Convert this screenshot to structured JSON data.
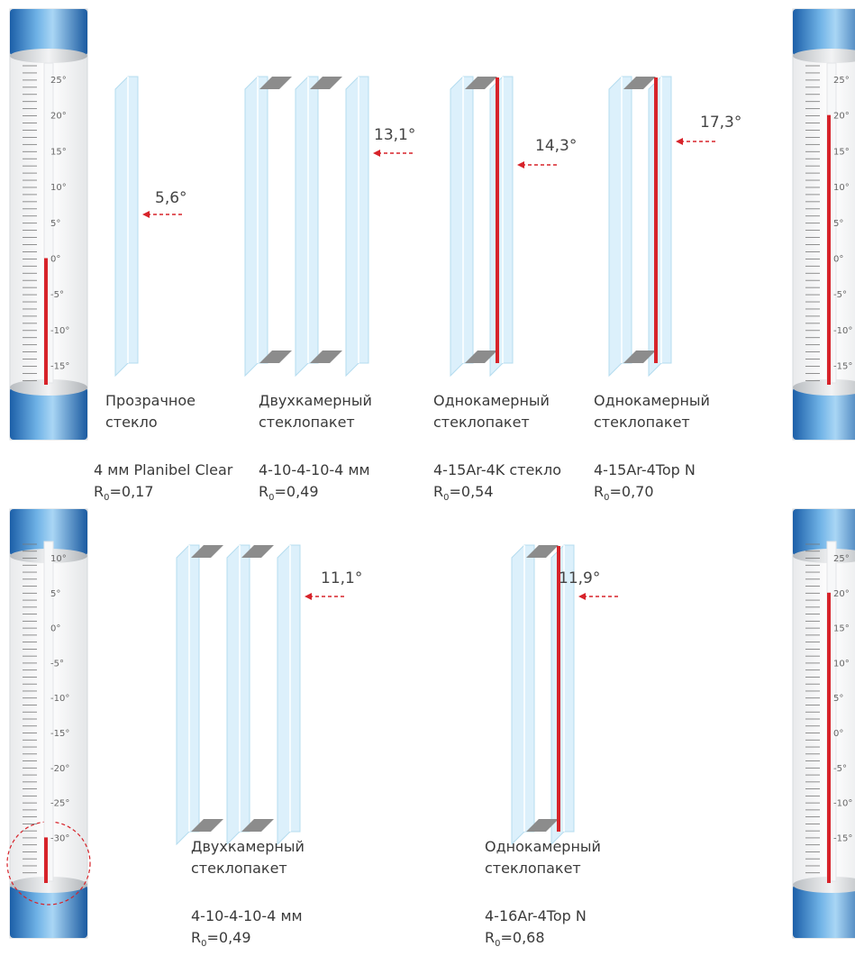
{
  "colors": {
    "mercury": "#d7232a",
    "arrow": "#d7232a",
    "glass": "#dcf0fb",
    "glassEdge": "#b4dcef",
    "spacer": "#8c8c8c",
    "capBlue": "#2f7ec8"
  },
  "thermometers": [
    {
      "id": "top-left",
      "labels": [
        "25°",
        "20°",
        "15°",
        "10°",
        "5°",
        "0°",
        "-5°",
        "-10°",
        "-15°"
      ],
      "reading": "0°"
    },
    {
      "id": "top-right",
      "labels": [
        "25°",
        "20°",
        "15°",
        "10°",
        "5°",
        "0°",
        "-5°",
        "-10°",
        "-15°"
      ],
      "reading": "20°"
    },
    {
      "id": "bottom-left",
      "labels": [
        "10°",
        "5°",
        "0°",
        "-5°",
        "-10°",
        "-15°",
        "-20°",
        "-25°",
        "-30°"
      ],
      "reading": "-30°"
    },
    {
      "id": "bottom-right",
      "labels": [
        "25°",
        "20°",
        "15°",
        "10°",
        "5°",
        "0°",
        "-5°",
        "-10°",
        "-15°"
      ],
      "reading": "20°"
    }
  ],
  "top_row": [
    {
      "type": "single",
      "temp": "5,6°",
      "title1": "Прозрачное",
      "title2": "стекло",
      "spec": "4 мм Planibel Clear",
      "r_label": "R",
      "r_sub": "0",
      "r_value": "=0,17"
    },
    {
      "type": "double",
      "temp": "13,1°",
      "title1": "Двухкамерный",
      "title2": "стеклопакет",
      "spec": "4-10-4-10-4 мм",
      "r_label": "R",
      "r_sub": "0",
      "r_value": "=0,49"
    },
    {
      "type": "lowe",
      "temp": "14,3°",
      "title1": "Однокамерный",
      "title2": "стеклопакет",
      "spec": "4-15Ar-4K стекло",
      "r_label": "R",
      "r_sub": "0",
      "r_value": "=0,54"
    },
    {
      "type": "lowe",
      "temp": "17,3°",
      "title1": "Однокамерный",
      "title2": "стеклопакет",
      "spec": "4-15Ar-4Top N",
      "r_label": "R",
      "r_sub": "0",
      "r_value": "=0,70"
    }
  ],
  "bottom_row": [
    {
      "type": "double",
      "temp": "11,1°",
      "title1": "Двухкамерный",
      "title2": "стеклопакет",
      "spec": "4-10-4-10-4 мм",
      "r_label": "R",
      "r_sub": "0",
      "r_value": "=0,49"
    },
    {
      "type": "lowe",
      "temp": "11,9°",
      "title1": "Однокамерный",
      "title2": "стеклопакет",
      "spec": "4-16Ar-4Top N",
      "r_label": "R",
      "r_sub": "0",
      "r_value": "=0,68"
    }
  ]
}
